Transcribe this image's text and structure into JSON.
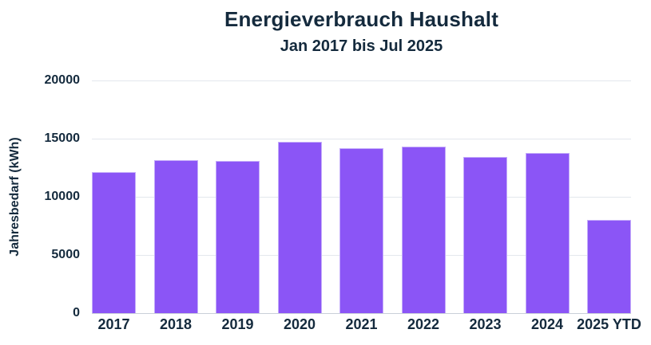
{
  "header": {
    "title": "Energieverbrauch Haushalt",
    "subtitle": "Jan 2017 bis Jul 2025"
  },
  "chart_data": {
    "type": "bar",
    "title": "Energieverbrauch Haushalt",
    "subtitle": "Jan 2017 bis Jul 2025",
    "categories": [
      "2017",
      "2018",
      "2019",
      "2020",
      "2021",
      "2022",
      "2023",
      "2024",
      "2025 YTD"
    ],
    "values": [
      12100,
      13150,
      13100,
      14700,
      14150,
      14300,
      13400,
      13750,
      8000
    ],
    "xlabel": "",
    "ylabel": "Jahresbedarf (kWh)",
    "ylim": [
      0,
      20000
    ],
    "yticks": [
      0,
      5000,
      10000,
      15000,
      20000
    ],
    "grid": true,
    "legend": "none",
    "colors": {
      "bar_fill": "#8b55f6",
      "bar_edge": "#c4acfa",
      "text": "#142a3d",
      "gridline": "#e3e7ed",
      "axis_baseline": "#c9cfd8",
      "background": "#ffffff"
    }
  }
}
